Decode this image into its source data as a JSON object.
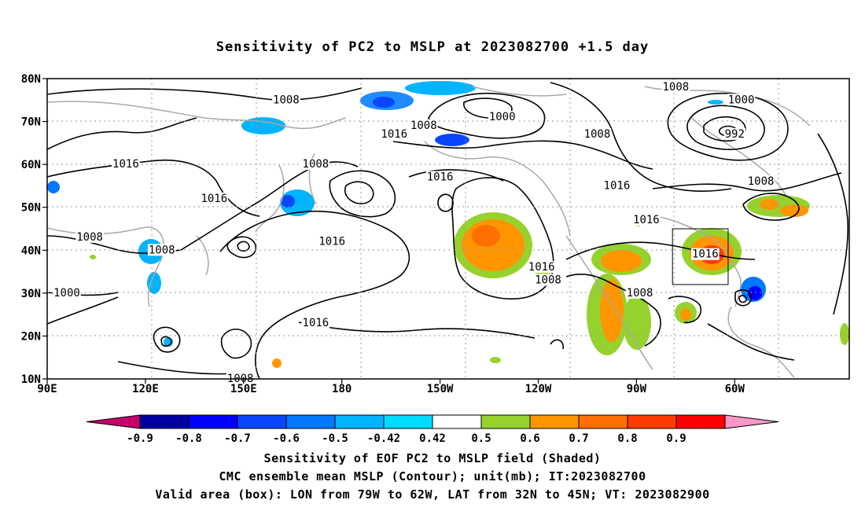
{
  "title": "Sensitivity of PC2 to MSLP at 2023082700 +1.5 day",
  "axes": {
    "lat_labels": [
      "80N",
      "70N",
      "60N",
      "50N",
      "40N",
      "30N",
      "20N",
      "10N"
    ],
    "lon_labels": [
      "90E",
      "120E",
      "150E",
      "180",
      "150W",
      "120W",
      "90W",
      "60W"
    ]
  },
  "contour_labels": [
    {
      "text": "1008",
      "lon": 163,
      "lat": 75
    },
    {
      "text": "1000",
      "lon": -131,
      "lat": 71
    },
    {
      "text": "1008",
      "lon": -155,
      "lat": 69
    },
    {
      "text": "1016",
      "lon": -164,
      "lat": 67
    },
    {
      "text": "1008",
      "lon": -102,
      "lat": 67
    },
    {
      "text": "1008",
      "lon": -78,
      "lat": 78
    },
    {
      "text": "1000",
      "lon": -58,
      "lat": 75
    },
    {
      "text": "992",
      "lon": -60,
      "lat": 67
    },
    {
      "text": "1016",
      "lon": 114,
      "lat": 60
    },
    {
      "text": "1016",
      "lon": 141,
      "lat": 52
    },
    {
      "text": "1008",
      "lon": 172,
      "lat": 60
    },
    {
      "text": "1016",
      "lon": -150,
      "lat": 57
    },
    {
      "text": "1016",
      "lon": -96,
      "lat": 55
    },
    {
      "text": "1008",
      "lon": -52,
      "lat": 56
    },
    {
      "text": "1016",
      "lon": -87,
      "lat": 47
    },
    {
      "text": "1008",
      "lon": 103,
      "lat": 43
    },
    {
      "text": "1008",
      "lon": 125,
      "lat": 40
    },
    {
      "text": "1016",
      "lon": 177,
      "lat": 42
    },
    {
      "text": "1016",
      "lon": -119,
      "lat": 36
    },
    {
      "text": "1008",
      "lon": -117,
      "lat": 33
    },
    {
      "text": "1016",
      "lon": -69,
      "lat": 39
    },
    {
      "text": "1000",
      "lon": 96,
      "lat": 30
    },
    {
      "text": "1008",
      "lon": -89,
      "lat": 30
    },
    {
      "text": "1016",
      "lon": 172,
      "lat": 23
    },
    {
      "text": "1008",
      "lon": 149,
      "lat": 10
    }
  ],
  "colorbar": {
    "labels": [
      "-0.9",
      "-0.8",
      "-0.7",
      "-0.6",
      "-0.5",
      "-0.42",
      "0.42",
      "0.5",
      "0.6",
      "0.7",
      "0.8",
      "0.9"
    ],
    "colors": [
      "#c8006e",
      "#0000a0",
      "#0000ff",
      "#0a46ff",
      "#0078ff",
      "#00b4ff",
      "#00dcff",
      "#ffffff",
      "#96d22d",
      "#ff9600",
      "#ff6e00",
      "#ff3c00",
      "#ff0000",
      "#ff96c8"
    ]
  },
  "valid_box": {
    "lon_min": -79,
    "lon_max": -62,
    "lat_min": 32,
    "lat_max": 45
  },
  "footer": {
    "line1": "Sensitivity of EOF PC2 to MSLP field (Shaded)",
    "line2": "CMC ensemble mean MSLP (Contour); unit(mb); IT:2023082700",
    "line3": "Valid area (box): LON from 79W to 62W, LAT from 32N to 45N; VT: 2023082900"
  }
}
